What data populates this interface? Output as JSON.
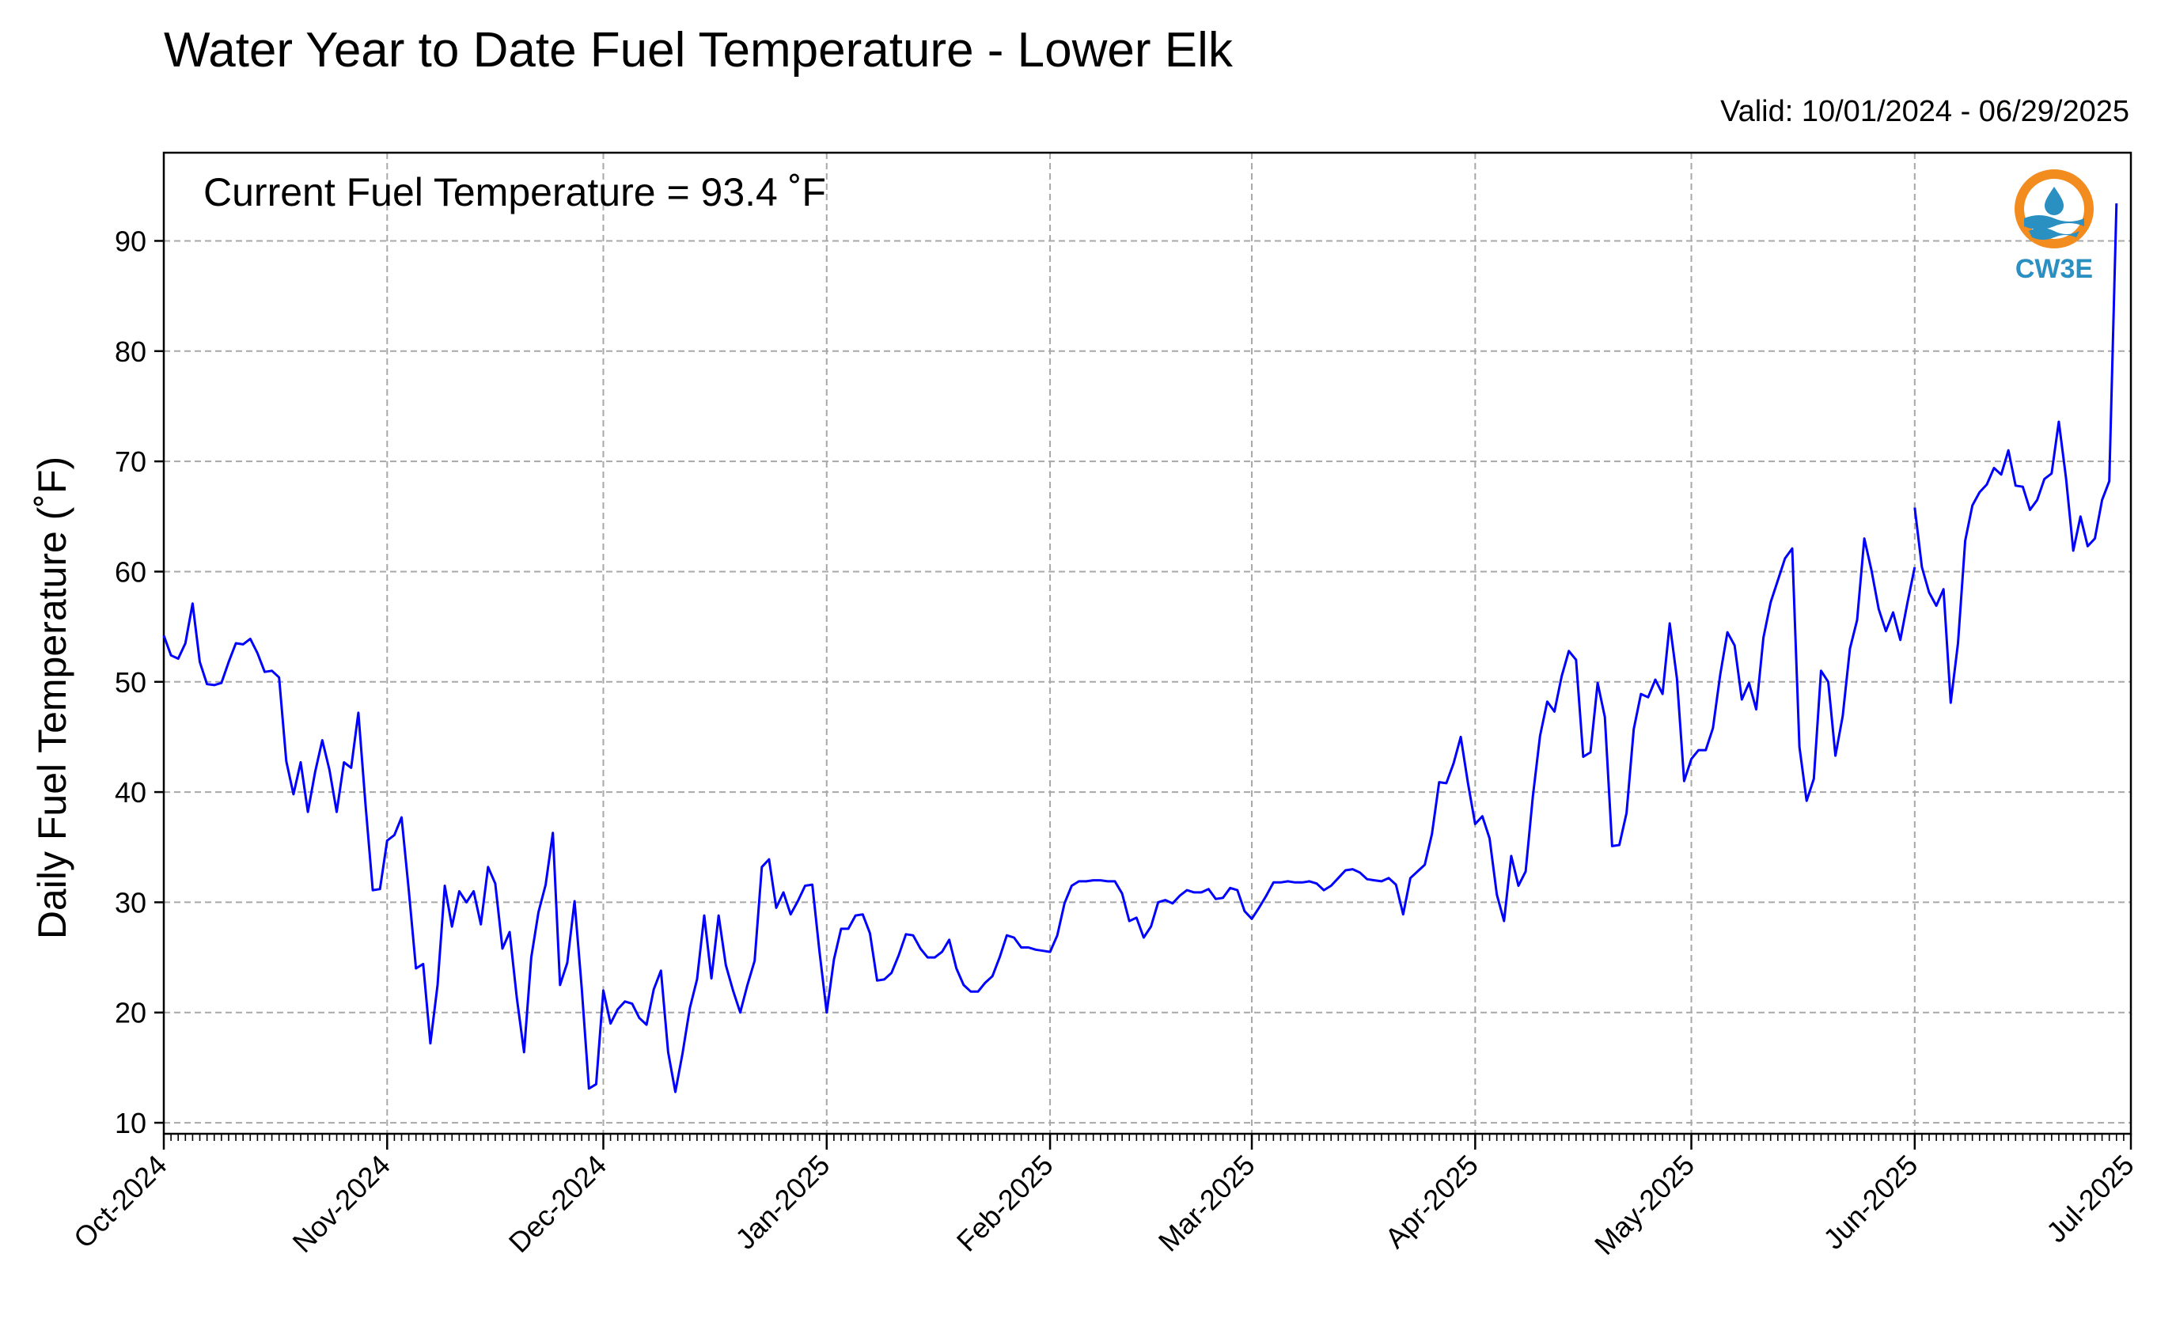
{
  "chart_data": {
    "type": "line",
    "title": "Water Year to Date Fuel Temperature - Lower Elk",
    "subtitle": "Valid: 10/01/2024 - 06/29/2025",
    "annotation": "Current Fuel Temperature = 93.4  ˚F",
    "xlabel": "",
    "ylabel": "Daily Fuel Temperature (˚F)",
    "ylim": [
      9,
      98
    ],
    "xlim": [
      "2024-10-01",
      "2025-07-01"
    ],
    "y_ticks": [
      10,
      20,
      30,
      40,
      50,
      60,
      70,
      80,
      90
    ],
    "x_ticks": [
      {
        "date": "2024-10-01",
        "label": "Oct-2024"
      },
      {
        "date": "2024-11-01",
        "label": "Nov-2024"
      },
      {
        "date": "2024-12-01",
        "label": "Dec-2024"
      },
      {
        "date": "2025-01-01",
        "label": "Jan-2025"
      },
      {
        "date": "2025-02-01",
        "label": "Feb-2025"
      },
      {
        "date": "2025-03-01",
        "label": "Mar-2025"
      },
      {
        "date": "2025-04-01",
        "label": "Apr-2025"
      },
      {
        "date": "2025-05-01",
        "label": "May-2025"
      },
      {
        "date": "2025-06-01",
        "label": "Jun-2025"
      },
      {
        "date": "2025-07-01",
        "label": "Jul-2025"
      }
    ],
    "grid": true,
    "line_color": "#0000ff",
    "series": [
      {
        "name": "",
        "segments": [
          {
            "start": "2024-10-01",
            "values": [
              54.2,
              52.4,
              52.1,
              53.5,
              57.1,
              51.8,
              49.8,
              49.7,
              49.9,
              51.8,
              53.5,
              53.4,
              53.9,
              52.6,
              50.9,
              51.0,
              50.4,
              42.8,
              39.8,
              42.7,
              38.2,
              41.8,
              44.7,
              42.0,
              38.2,
              42.7,
              42.2,
              47.2,
              38.8,
              31.1,
              31.2,
              35.6,
              36.1,
              37.7,
              31.1,
              24.0,
              24.4,
              17.2,
              22.5,
              31.5,
              27.8,
              31.0,
              30.0,
              31.0,
              28.0,
              33.2,
              31.7,
              25.8,
              27.3,
              21.3,
              16.4,
              25.0,
              29.1,
              31.6,
              36.3,
              22.5,
              24.5,
              30.1,
              22.2,
              13.1,
              13.5,
              22.0,
              19.0,
              20.3,
              21.0,
              20.8,
              19.5,
              18.9,
              22.1,
              23.8,
              16.4,
              12.8,
              16.3,
              20.4,
              23.0,
              28.8,
              23.1,
              28.8,
              24.3,
              22.0,
              20.0,
              22.5,
              24.7,
              33.2,
              33.9,
              29.5,
              30.9,
              28.9,
              30.1,
              31.5,
              31.6,
              25.5,
              20.0,
              24.8,
              27.6,
              27.6,
              28.8,
              28.9,
              27.2,
              22.9,
              23.0,
              23.6,
              25.2,
              27.1,
              27.0,
              25.8,
              25.0,
              25.0,
              25.5,
              26.6,
              24.0,
              22.5,
              21.9,
              21.9,
              22.7,
              23.3,
              25.0,
              27.0,
              26.8,
              25.9,
              25.9,
              25.7,
              25.6,
              25.5,
              27.0,
              29.9,
              31.5,
              31.9,
              31.9,
              32.0,
              32.0,
              31.9,
              31.9,
              30.8,
              28.3,
              28.6,
              26.8,
              27.8,
              30.0,
              30.2,
              29.9,
              30.6,
              31.1,
              30.9,
              30.9,
              31.2,
              30.3,
              30.4,
              31.3,
              31.1,
              29.2,
              28.5,
              29.5,
              30.6,
              31.8,
              31.8,
              31.9,
              31.8,
              31.8,
              31.9,
              31.7,
              31.1,
              31.5,
              32.2,
              32.9,
              33.0,
              32.7,
              32.1,
              32.0,
              31.9,
              32.2,
              31.6,
              28.9,
              32.2,
              32.8,
              33.4,
              36.2,
              40.9,
              40.8,
              42.6,
              45.0,
              40.8,
              37.1,
              37.8,
              35.8,
              30.7,
              28.3,
              34.2,
              31.5,
              32.8,
              39.6,
              45.1,
              48.2,
              47.3,
              50.5,
              52.8,
              52.0,
              43.2,
              43.6,
              49.9,
              46.8,
              35.1,
              35.2,
              38.1,
              45.7,
              48.9,
              48.6,
              50.2,
              48.9,
              55.3,
              50.3,
              41.0,
              43.0,
              43.8,
              43.8,
              45.8,
              50.6,
              54.5,
              53.3,
              48.4,
              49.9,
              47.5,
              54.0,
              57.2,
              59.2,
              61.2,
              62.1,
              44.1,
              39.2,
              41.2,
              51.0,
              50.0,
              43.3,
              46.9,
              53.0,
              55.6,
              63.0,
              60.1,
              56.6,
              54.6,
              56.3,
              53.8,
              57.2,
              60.4
            ]
          },
          {
            "start": "2025-06-01",
            "values": [
              65.8,
              60.4,
              58.1,
              56.9,
              58.4,
              48.1,
              53.5,
              62.8,
              66.0,
              67.2,
              67.9,
              69.4,
              68.8,
              71.0,
              67.8,
              67.7,
              65.6,
              66.5,
              68.4,
              68.9,
              73.6,
              68.5,
              61.9,
              65.0,
              62.3,
              63.0,
              66.5,
              68.2,
              93.4
            ]
          }
        ]
      }
    ]
  },
  "logo": {
    "text": "CW3E",
    "ring_color": "#f28c1e",
    "wave_color": "#2a8fc1"
  }
}
